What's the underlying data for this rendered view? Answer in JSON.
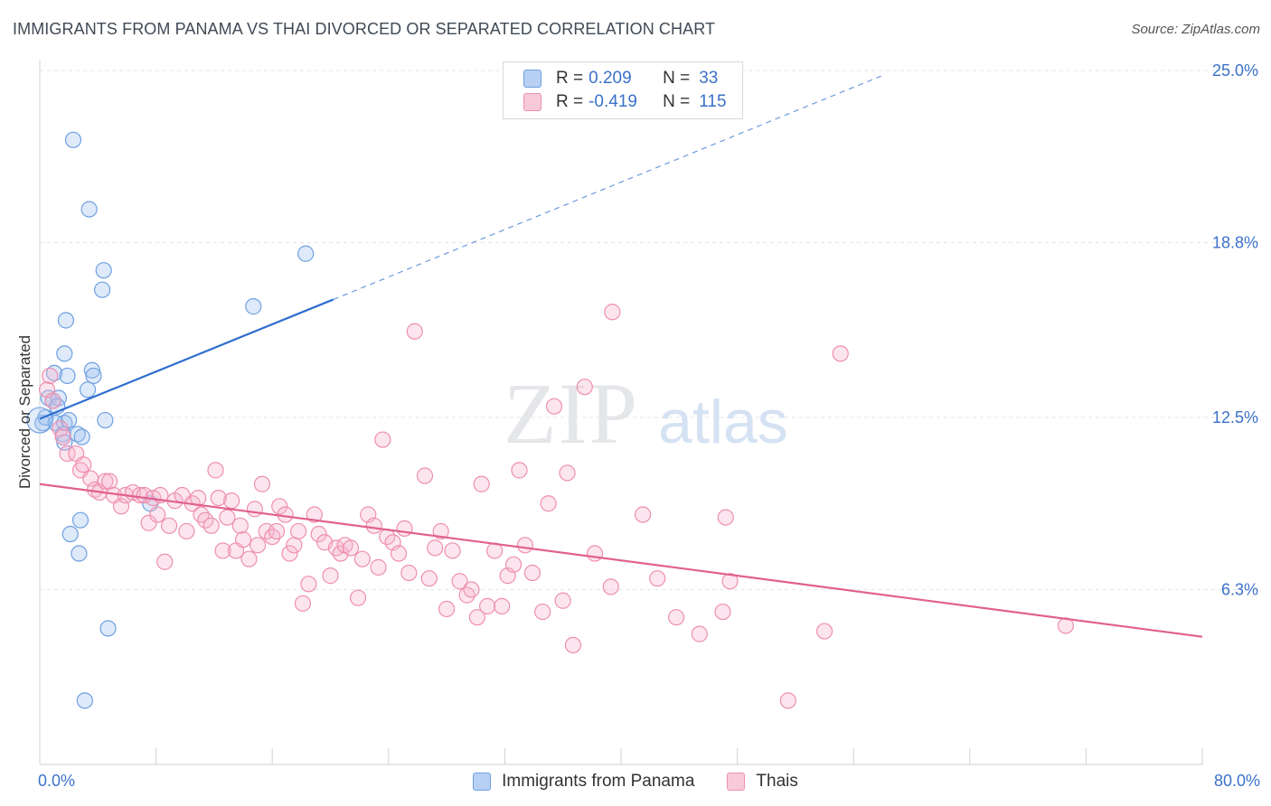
{
  "header": {
    "title": "IMMIGRANTS FROM PANAMA VS THAI DIVORCED OR SEPARATED CORRELATION CHART",
    "source": "Source: ZipAtlas.com"
  },
  "watermark": {
    "zip": "ZIP",
    "atlas": "atlas"
  },
  "legend": {
    "rows": [
      {
        "r_label": "R =",
        "r_value": "0.209",
        "n_label": "N =",
        "n_value": "33",
        "color": "#6fa0e0",
        "fill": "#b7d0f3"
      },
      {
        "r_label": "R =",
        "r_value": "-0.419",
        "n_label": "N =",
        "n_value": "115",
        "color": "#ee8fae",
        "fill": "#f8c9d8"
      }
    ]
  },
  "bottom_legend": [
    {
      "label": "Immigrants from Panama",
      "color": "#6fa0e0",
      "fill": "#b7d0f3"
    },
    {
      "label": "Thais",
      "color": "#ee8fae",
      "fill": "#f8c9d8"
    }
  ],
  "chart_data": {
    "type": "scatter",
    "title": "IMMIGRANTS FROM PANAMA VS THAI DIVORCED OR SEPARATED CORRELATION CHART",
    "ylabel": "Divorced or Separated",
    "xlim": [
      0,
      80
    ],
    "ylim": [
      0,
      25
    ],
    "x_tick_labels": [
      {
        "value": 0,
        "label": "0.0%"
      },
      {
        "value": 80,
        "label": "80.0%"
      }
    ],
    "y_tick_labels": [
      {
        "value": 6.3,
        "label": "6.3%"
      },
      {
        "value": 12.5,
        "label": "12.5%"
      },
      {
        "value": 18.8,
        "label": "18.8%"
      },
      {
        "value": 25.0,
        "label": "25.0%"
      }
    ],
    "grid": true,
    "legend_position": "top-center",
    "series": [
      {
        "name": "Immigrants from Panama",
        "stroke": "#6fa0e0",
        "fill": "rgba(160,195,240,0.35)",
        "trend_color": "#2f6fcf",
        "trend": {
          "x0": 0,
          "y0": 12.45,
          "x1": 20.2,
          "y1": 16.75,
          "dash_to_x": 57.9,
          "dash_to_y": 24.8
        },
        "points": [
          [
            0.2,
            12.3
          ],
          [
            2.3,
            22.5
          ],
          [
            3.4,
            20.0
          ],
          [
            4.4,
            17.8
          ],
          [
            4.3,
            17.1
          ],
          [
            18.3,
            18.4
          ],
          [
            14.7,
            16.5
          ],
          [
            1.8,
            16.0
          ],
          [
            1.7,
            14.8
          ],
          [
            1.0,
            14.1
          ],
          [
            1.9,
            14.0
          ],
          [
            3.6,
            14.2
          ],
          [
            3.7,
            14.0
          ],
          [
            3.3,
            13.5
          ],
          [
            0.6,
            13.2
          ],
          [
            0.9,
            13.1
          ],
          [
            1.3,
            13.2
          ],
          [
            1.2,
            12.9
          ],
          [
            0.4,
            12.5
          ],
          [
            1.1,
            12.3
          ],
          [
            1.7,
            12.3
          ],
          [
            2.0,
            12.4
          ],
          [
            4.5,
            12.4
          ],
          [
            1.6,
            11.9
          ],
          [
            2.6,
            11.9
          ],
          [
            2.9,
            11.8
          ],
          [
            1.7,
            11.6
          ],
          [
            7.6,
            9.4
          ],
          [
            2.8,
            8.8
          ],
          [
            2.1,
            8.3
          ],
          [
            2.7,
            7.6
          ],
          [
            4.7,
            4.9
          ],
          [
            3.1,
            2.3
          ]
        ]
      },
      {
        "name": "Thais",
        "stroke": "#ee8fae",
        "fill": "rgba(246,180,205,0.35)",
        "trend_color": "#e0608e",
        "trend": {
          "x0": 0,
          "y0": 10.1,
          "x1": 80,
          "y1": 4.6
        },
        "points": [
          [
            0.5,
            13.5
          ],
          [
            0.7,
            14.0
          ],
          [
            0.9,
            13.1
          ],
          [
            1.4,
            12.1
          ],
          [
            1.6,
            11.8
          ],
          [
            1.9,
            11.2
          ],
          [
            2.5,
            11.2
          ],
          [
            2.8,
            10.6
          ],
          [
            3.0,
            10.8
          ],
          [
            3.5,
            10.3
          ],
          [
            3.8,
            9.9
          ],
          [
            4.1,
            9.8
          ],
          [
            4.5,
            10.2
          ],
          [
            4.8,
            10.2
          ],
          [
            5.1,
            9.7
          ],
          [
            5.6,
            9.3
          ],
          [
            5.9,
            9.7
          ],
          [
            6.4,
            9.8
          ],
          [
            6.9,
            9.7
          ],
          [
            7.2,
            9.7
          ],
          [
            7.5,
            8.7
          ],
          [
            7.8,
            9.6
          ],
          [
            8.1,
            9.0
          ],
          [
            8.3,
            9.7
          ],
          [
            8.6,
            7.3
          ],
          [
            8.9,
            8.6
          ],
          [
            9.3,
            9.5
          ],
          [
            9.8,
            9.7
          ],
          [
            10.1,
            8.4
          ],
          [
            10.5,
            9.4
          ],
          [
            10.9,
            9.6
          ],
          [
            11.1,
            9.0
          ],
          [
            11.4,
            8.8
          ],
          [
            11.8,
            8.6
          ],
          [
            12.1,
            10.6
          ],
          [
            12.3,
            9.6
          ],
          [
            12.6,
            7.7
          ],
          [
            12.9,
            8.9
          ],
          [
            13.2,
            9.5
          ],
          [
            13.5,
            7.7
          ],
          [
            13.8,
            8.6
          ],
          [
            14.0,
            8.1
          ],
          [
            14.4,
            7.4
          ],
          [
            14.8,
            9.2
          ],
          [
            15.0,
            7.9
          ],
          [
            15.3,
            10.1
          ],
          [
            15.6,
            8.4
          ],
          [
            16.0,
            8.2
          ],
          [
            16.3,
            8.4
          ],
          [
            16.5,
            9.3
          ],
          [
            16.9,
            9.0
          ],
          [
            17.2,
            7.6
          ],
          [
            17.5,
            7.9
          ],
          [
            17.8,
            8.4
          ],
          [
            18.1,
            5.8
          ],
          [
            18.5,
            6.5
          ],
          [
            18.9,
            9.0
          ],
          [
            19.2,
            8.3
          ],
          [
            19.6,
            8.0
          ],
          [
            20.0,
            6.8
          ],
          [
            20.4,
            7.8
          ],
          [
            20.7,
            7.6
          ],
          [
            21.0,
            7.9
          ],
          [
            21.4,
            7.8
          ],
          [
            21.9,
            6.0
          ],
          [
            22.2,
            7.4
          ],
          [
            22.6,
            9.0
          ],
          [
            23.0,
            8.6
          ],
          [
            23.3,
            7.1
          ],
          [
            23.6,
            11.7
          ],
          [
            23.9,
            8.2
          ],
          [
            24.3,
            8.0
          ],
          [
            24.7,
            7.6
          ],
          [
            25.1,
            8.5
          ],
          [
            25.4,
            6.9
          ],
          [
            25.8,
            15.6
          ],
          [
            26.5,
            10.4
          ],
          [
            26.8,
            6.7
          ],
          [
            27.2,
            7.8
          ],
          [
            27.6,
            8.4
          ],
          [
            28.0,
            5.6
          ],
          [
            28.4,
            7.7
          ],
          [
            28.9,
            6.6
          ],
          [
            29.4,
            6.1
          ],
          [
            29.7,
            6.3
          ],
          [
            30.1,
            5.3
          ],
          [
            30.4,
            10.1
          ],
          [
            30.8,
            5.7
          ],
          [
            31.3,
            7.7
          ],
          [
            31.8,
            5.7
          ],
          [
            32.2,
            6.8
          ],
          [
            32.6,
            7.2
          ],
          [
            33.0,
            10.6
          ],
          [
            33.4,
            7.9
          ],
          [
            33.9,
            6.9
          ],
          [
            34.6,
            5.5
          ],
          [
            35.0,
            9.4
          ],
          [
            35.4,
            12.9
          ],
          [
            36.0,
            5.9
          ],
          [
            36.3,
            10.5
          ],
          [
            36.7,
            4.3
          ],
          [
            37.5,
            13.6
          ],
          [
            38.2,
            7.6
          ],
          [
            39.3,
            6.4
          ],
          [
            39.4,
            16.3
          ],
          [
            41.5,
            9.0
          ],
          [
            42.5,
            6.7
          ],
          [
            43.8,
            5.3
          ],
          [
            45.4,
            4.7
          ],
          [
            47.0,
            5.5
          ],
          [
            47.2,
            8.9
          ],
          [
            47.5,
            6.6
          ],
          [
            51.5,
            2.3
          ],
          [
            54.0,
            4.8
          ],
          [
            55.1,
            14.8
          ],
          [
            70.6,
            5.0
          ]
        ]
      }
    ]
  }
}
